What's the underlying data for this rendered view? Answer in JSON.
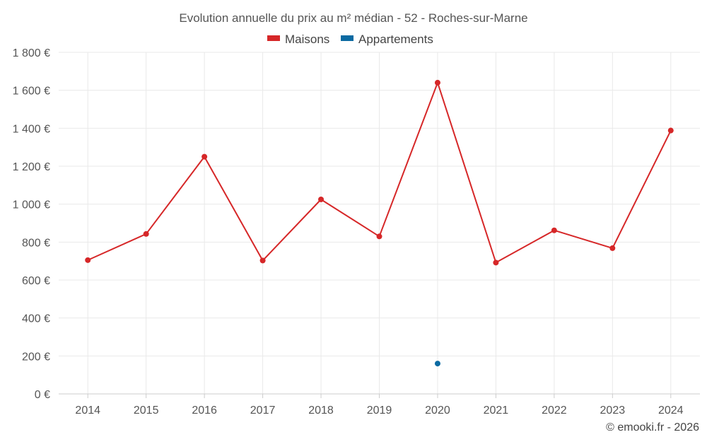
{
  "chart_data": {
    "type": "line",
    "title": "Evolution annuelle du prix au m² médian - 52 - Roches-sur-Marne",
    "categories": [
      "2014",
      "2015",
      "2016",
      "2017",
      "2018",
      "2019",
      "2020",
      "2021",
      "2022",
      "2023",
      "2024"
    ],
    "series": [
      {
        "name": "Maisons",
        "color": "#d62728",
        "values": [
          705,
          843,
          1250,
          703,
          1025,
          830,
          1640,
          692,
          862,
          768,
          1388
        ]
      },
      {
        "name": "Appartements",
        "color": "#0b6aa2",
        "values": [
          null,
          null,
          null,
          null,
          null,
          null,
          160,
          null,
          null,
          null,
          null
        ]
      }
    ],
    "ylim": [
      0,
      1800
    ],
    "yticks": [
      0,
      200,
      400,
      600,
      800,
      1000,
      1200,
      1400,
      1600,
      1800
    ],
    "ytick_labels": [
      "0 €",
      "200 €",
      "400 €",
      "600 €",
      "800 €",
      "1 000 €",
      "1 200 €",
      "1 400 €",
      "1 600 €",
      "1 800 €"
    ],
    "grid": true,
    "legend_position": "top-center"
  },
  "credit": "© emooki.fr - 2026"
}
